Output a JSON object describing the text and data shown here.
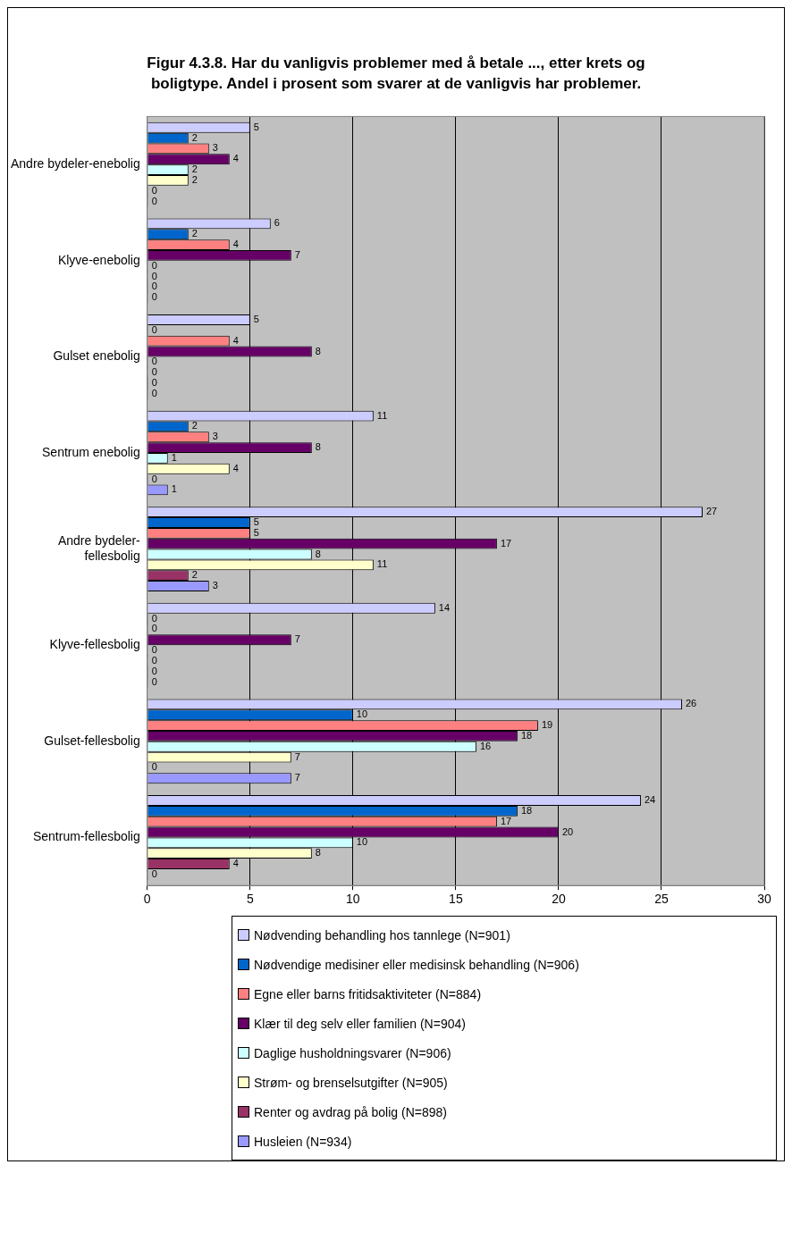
{
  "chart_data": {
    "type": "bar",
    "orientation": "horizontal",
    "title": "Figur 4.3.8. Har du vanligvis problemer med å betale ..., etter krets og boligtype. Andel i prosent som svarer at de vanligvis har problemer.",
    "categories": [
      "Andre bydeler-enebolig",
      "Klyve-enebolig",
      "Gulset enebolig",
      "Sentrum enebolig",
      "Andre bydeler-fellesbolig",
      "Klyve-fellesbolig",
      "Gulset-fellesbolig",
      "Sentrum-fellesbolig"
    ],
    "series": [
      {
        "name": "Nødvending behandling hos tannlege (N=901)",
        "color": "#ccccff",
        "values": [
          5,
          6,
          5,
          11,
          27,
          14,
          26,
          24
        ]
      },
      {
        "name": "Nødvendige medisiner eller medisinsk behandling (N=906)",
        "color": "#0066cc",
        "values": [
          2,
          2,
          0,
          2,
          5,
          0,
          10,
          18
        ]
      },
      {
        "name": "Egne eller barns fritidsaktiviteter (N=884)",
        "color": "#ff8080",
        "values": [
          3,
          4,
          4,
          3,
          5,
          0,
          19,
          17
        ]
      },
      {
        "name": "Klær til deg selv eller familien (N=904)",
        "color": "#660066",
        "values": [
          4,
          7,
          8,
          8,
          17,
          7,
          18,
          20
        ]
      },
      {
        "name": "Daglige husholdningsvarer (N=906)",
        "color": "#ccffff",
        "values": [
          2,
          0,
          0,
          1,
          8,
          0,
          16,
          10
        ]
      },
      {
        "name": "Strøm- og brenselsutgifter (N=905)",
        "color": "#ffffcc",
        "values": [
          2,
          0,
          0,
          4,
          11,
          0,
          7,
          8
        ]
      },
      {
        "name": "Renter og avdrag på bolig (N=898)",
        "color": "#993366",
        "values": [
          0,
          0,
          0,
          0,
          2,
          0,
          0,
          4
        ]
      },
      {
        "name": "Husleien (N=934)",
        "color": "#9999ff",
        "values": [
          0,
          0,
          0,
          1,
          3,
          0,
          7,
          0
        ]
      }
    ],
    "xlim": [
      0,
      30
    ],
    "xticks": [
      0,
      5,
      10,
      15,
      20,
      25,
      30
    ],
    "grid": "x",
    "legend": "bottom",
    "data_labels": true
  }
}
